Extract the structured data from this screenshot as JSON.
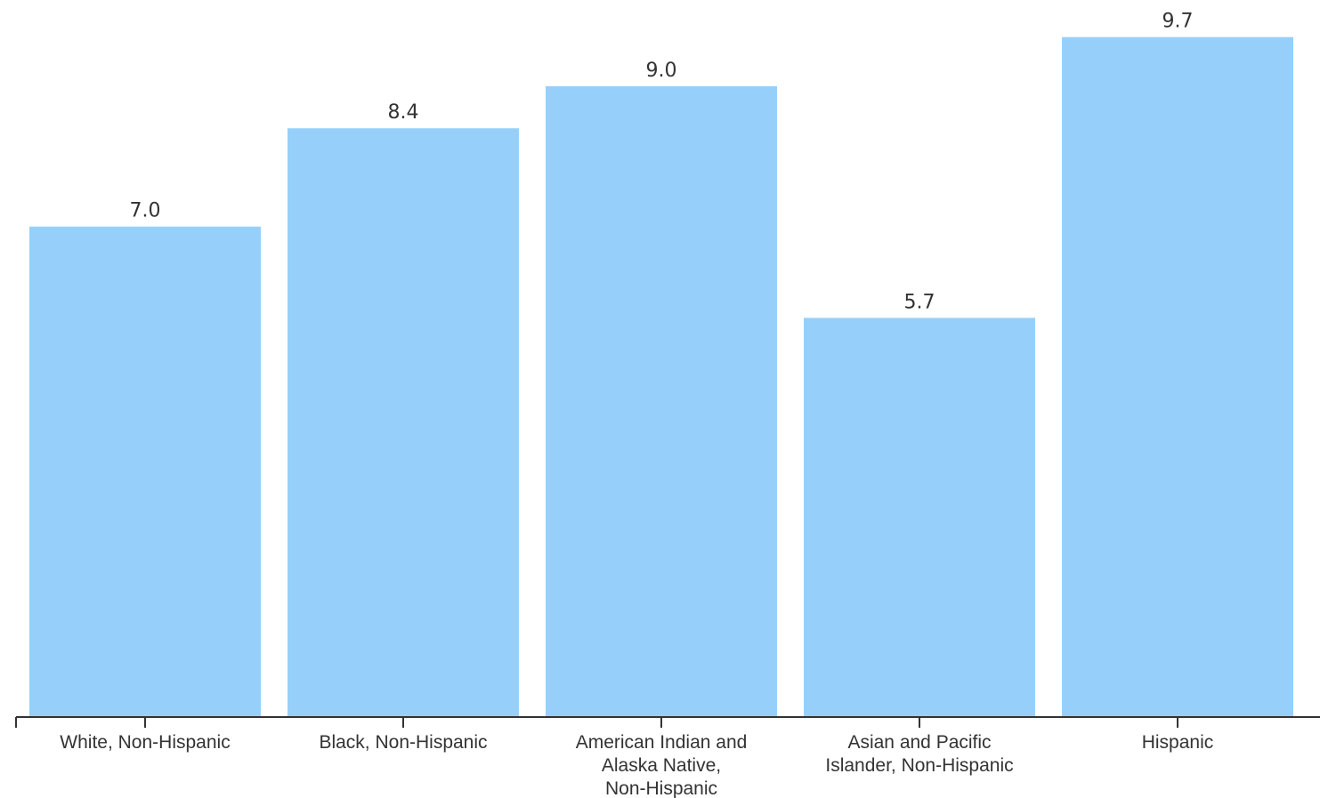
{
  "chart_data": {
    "type": "bar",
    "categories": [
      [
        "White, Non-Hispanic"
      ],
      [
        "Black, Non-Hispanic"
      ],
      [
        "American Indian and",
        "Alaska Native,",
        "Non-Hispanic"
      ],
      [
        "Asian and Pacific",
        "Islander, Non-Hispanic"
      ],
      [
        "Hispanic"
      ]
    ],
    "values": [
      7.0,
      8.4,
      9.0,
      5.7,
      9.7
    ],
    "value_labels": [
      "7.0",
      "8.4",
      "9.0",
      "5.7",
      "9.7"
    ],
    "title": "",
    "xlabel": "",
    "ylabel": "",
    "ylim": [
      0,
      10.2
    ],
    "grid": false,
    "colors": {
      "bar": "#96d0fa",
      "axis": "#333333",
      "text": "#333333"
    }
  }
}
